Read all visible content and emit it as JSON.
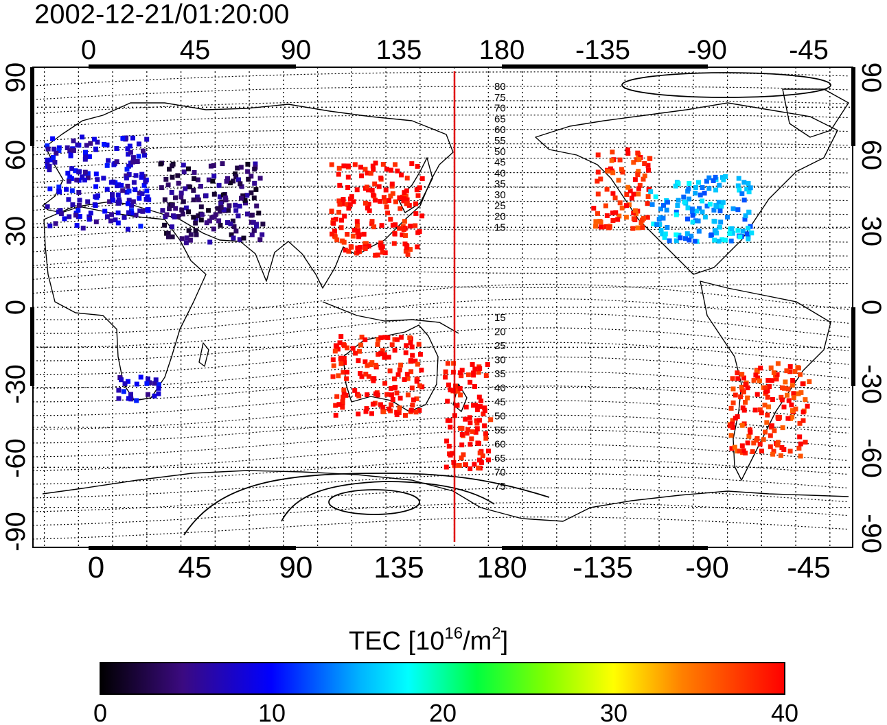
{
  "title": "2002-12-21/01:20:00",
  "map": {
    "lon_ticks": [
      "0",
      "45",
      "90",
      "135",
      "180",
      "-135",
      "-90",
      "-45"
    ],
    "lat_ticks_left": [
      "90",
      "60",
      "30",
      "0",
      "-30",
      "-60",
      "-90"
    ],
    "lat_ticks_right": [
      "90",
      "60",
      "30",
      "0",
      "-30",
      "-60",
      "-90"
    ],
    "contour_labels_north": [
      "80",
      "75",
      "70",
      "65",
      "60",
      "55",
      "50",
      "45",
      "40",
      "35",
      "30",
      "25",
      "20",
      "15"
    ],
    "contour_labels_south": [
      "15",
      "20",
      "25",
      "30",
      "35",
      "40",
      "45",
      "50",
      "55",
      "60",
      "65",
      "70",
      "75"
    ],
    "terminator_color": "#e00000"
  },
  "colorbar": {
    "label_main": "TEC  [10",
    "label_sup1": "16",
    "label_mid": "/m",
    "label_sup2": "2",
    "label_end": "]",
    "ticks": [
      "0",
      "10",
      "20",
      "30",
      "40"
    ],
    "range": [
      0,
      40
    ],
    "stops": [
      "#000000",
      "#4a0a8a",
      "#0000ff",
      "#00ffff",
      "#00ff00",
      "#ffff00",
      "#ff7f00",
      "#ff0000"
    ]
  },
  "chart_data": {
    "type": "heatmap",
    "title": "2002-12-21/01:20:00",
    "xlabel": "",
    "ylabel": "",
    "xlim": [
      -20,
      340
    ],
    "ylim": [
      -90,
      90
    ],
    "grid": true,
    "colorbar_label": "TEC [10^16/m^2]",
    "colorbar_range": [
      0,
      40
    ],
    "regions": [
      {
        "lon": [
          -15,
          30
        ],
        "lat": [
          30,
          65
        ],
        "tec": 8
      },
      {
        "lon": [
          35,
          80
        ],
        "lat": [
          25,
          55
        ],
        "tec": 4
      },
      {
        "lon": [
          110,
          150
        ],
        "lat": [
          20,
          55
        ],
        "tec": 40
      },
      {
        "lon": [
          110,
          150
        ],
        "lat": [
          -40,
          -10
        ],
        "tec": 40
      },
      {
        "lon": [
          160,
          180
        ],
        "lat": [
          -60,
          -20
        ],
        "tec": 40
      },
      {
        "lon": [
          -135,
          -110
        ],
        "lat": [
          30,
          60
        ],
        "tec": 38
      },
      {
        "lon": [
          -110,
          -65
        ],
        "lat": [
          25,
          50
        ],
        "tec": 15
      },
      {
        "lon": [
          -75,
          -40
        ],
        "lat": [
          -55,
          -20
        ],
        "tec": 38
      },
      {
        "lon": [
          15,
          35
        ],
        "lat": [
          -35,
          -25
        ],
        "tec": 8
      }
    ]
  }
}
